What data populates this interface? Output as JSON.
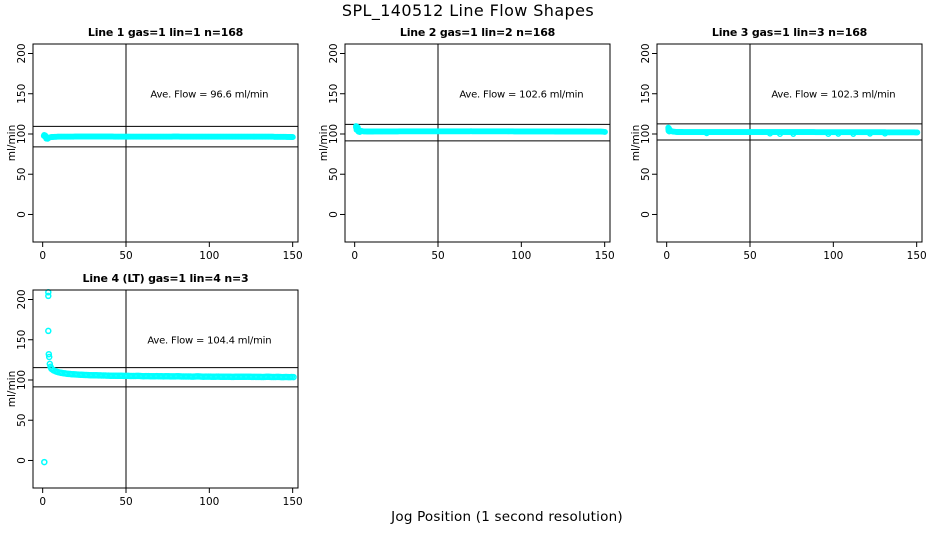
{
  "page": {
    "title": "SPL_140512  Line Flow Shapes",
    "xlabel": "Jog Position (1 second resolution)",
    "background": "#ffffff",
    "axis_color": "#000000"
  },
  "chart_data": [
    {
      "type": "scatter",
      "title": "Line 1 gas=1 lin=1 n=168",
      "ylabel": "ml/min",
      "ave_flow": 96.6,
      "ave_text": "Ave. Flow =  96.6  ml/min",
      "ave_xy": [
        100,
        150
      ],
      "xlim": [
        -5.8,
        153.2
      ],
      "ylim": [
        -34.2,
        211.8
      ],
      "xticks": [
        0,
        50,
        100,
        150
      ],
      "yticks": [
        0,
        50,
        100,
        150,
        200
      ],
      "vline_x": 50,
      "hlines": [
        109.5,
        84
      ],
      "marker_color": "#00FFFF",
      "marker": {
        "r": 2.2,
        "stroke_width": 1.5
      },
      "band": {
        "step": 0.45,
        "points": [
          [
            0.7,
            97.8
          ],
          [
            1.5,
            96.6
          ],
          [
            2.5,
            95.4
          ],
          [
            3.5,
            95.3
          ],
          [
            4.5,
            95.9
          ],
          [
            6,
            96.4
          ],
          [
            9,
            96.6
          ],
          [
            20,
            96.7
          ],
          [
            40,
            96.7
          ],
          [
            60,
            96.6
          ],
          [
            80,
            96.7
          ],
          [
            100,
            96.6
          ],
          [
            120,
            96.6
          ],
          [
            135,
            96.6
          ],
          [
            145,
            96.5
          ],
          [
            149,
            96.3
          ],
          [
            150.5,
            96.1
          ]
        ]
      },
      "outliers": [
        [
          0.9,
          98.9
        ],
        [
          1.6,
          98.3
        ],
        [
          2.2,
          94.2
        ],
        [
          3,
          94
        ]
      ]
    },
    {
      "type": "scatter",
      "title": "Line 2 gas=1 lin=2 n=168",
      "ylabel": "ml/min",
      "ave_flow": 102.6,
      "ave_text": "Ave. Flow =  102.6  ml/min",
      "ave_xy": [
        100,
        150
      ],
      "xlim": [
        -5.8,
        153.2
      ],
      "ylim": [
        -34.2,
        211.8
      ],
      "xticks": [
        0,
        50,
        100,
        150
      ],
      "yticks": [
        0,
        50,
        100,
        150,
        200
      ],
      "vline_x": 50,
      "hlines": [
        112,
        91.5
      ],
      "marker_color": "#00FFFF",
      "marker": {
        "r": 2.2,
        "stroke_width": 1.5
      },
      "band": {
        "step": 0.6,
        "points": [
          [
            0.8,
            108.2
          ],
          [
            1.6,
            106.3
          ],
          [
            2.5,
            104.8
          ],
          [
            3.5,
            103.9
          ],
          [
            5,
            103.3
          ],
          [
            8,
            103.1
          ],
          [
            15,
            103.2
          ],
          [
            30,
            103.3
          ],
          [
            50,
            103.3
          ],
          [
            70,
            103.4
          ],
          [
            90,
            103.3
          ],
          [
            110,
            103.2
          ],
          [
            130,
            103.1
          ],
          [
            142,
            103.0
          ],
          [
            148,
            102.9
          ],
          [
            150.5,
            102.6
          ]
        ]
      },
      "outliers": [
        [
          0.8,
          109.8
        ],
        [
          1.3,
          109.2
        ],
        [
          1.9,
          108.3
        ],
        [
          1.1,
          105.2
        ],
        [
          2.3,
          102.9
        ],
        [
          3.1,
          102.5
        ]
      ]
    },
    {
      "type": "scatter",
      "title": "Line 3 gas=1 lin=3 n=168",
      "ylabel": "ml/min",
      "ave_flow": 102.3,
      "ave_text": "Ave. Flow =  102.3  ml/min",
      "ave_xy": [
        100,
        150
      ],
      "xlim": [
        -5.8,
        153.2
      ],
      "ylim": [
        -34.2,
        211.8
      ],
      "xticks": [
        0,
        50,
        100,
        150
      ],
      "yticks": [
        0,
        50,
        100,
        150,
        200
      ],
      "vline_x": 50,
      "hlines": [
        112.5,
        92.5
      ],
      "marker_color": "#00FFFF",
      "marker": {
        "r": 2.2,
        "stroke_width": 1.5
      },
      "band": {
        "step": 0.6,
        "points": [
          [
            1,
            106.2
          ],
          [
            1.8,
            104.9
          ],
          [
            2.8,
            103.6
          ],
          [
            4,
            102.9
          ],
          [
            6,
            102.5
          ],
          [
            10,
            102.4
          ],
          [
            25,
            102.4
          ],
          [
            45,
            102.3
          ],
          [
            65,
            102.3
          ],
          [
            85,
            102.3
          ],
          [
            105,
            102.2
          ],
          [
            125,
            102.2
          ],
          [
            140,
            102.1
          ],
          [
            148,
            102.1
          ],
          [
            150.5,
            101.9
          ]
        ]
      },
      "outliers": [
        [
          1,
          107.9
        ],
        [
          1.4,
          107
        ],
        [
          1.1,
          104
        ],
        [
          1.6,
          103
        ],
        [
          24,
          100.9
        ],
        [
          62,
          100.3
        ],
        [
          68,
          99.9
        ],
        [
          76,
          100
        ],
        [
          97,
          99.8
        ],
        [
          103,
          100.1
        ],
        [
          112,
          100
        ],
        [
          122,
          100.2
        ],
        [
          131,
          100.4
        ]
      ]
    },
    {
      "type": "scatter",
      "title": "Line 4 (LT) gas=1 lin=4 n=3",
      "ylabel": "ml/min",
      "ave_flow": 104.4,
      "ave_text": "Ave. Flow =  104.4  ml/min",
      "ave_xy": [
        100,
        150
      ],
      "xlim": [
        -5.8,
        153.2
      ],
      "ylim": [
        -34.2,
        211.8
      ],
      "xticks": [
        0,
        50,
        100,
        150
      ],
      "yticks": [
        0,
        50,
        100,
        150,
        200
      ],
      "vline_x": 50,
      "hlines": [
        115.3,
        91.5
      ],
      "marker_color": "#00FFFF",
      "marker": {
        "r": 2.5,
        "stroke_width": 1.5
      },
      "band": {
        "step": 1.0,
        "points": [
          [
            5.5,
            113.5
          ],
          [
            6.5,
            112
          ],
          [
            8,
            110.6
          ],
          [
            10,
            109.4
          ],
          [
            12,
            108.6
          ],
          [
            15,
            107.7
          ],
          [
            18,
            107.1
          ],
          [
            21,
            106.7
          ],
          [
            24,
            106.4
          ],
          [
            27,
            106.1
          ],
          [
            30,
            105.9
          ],
          [
            34,
            105.7
          ],
          [
            38,
            105.5
          ],
          [
            42,
            105.3
          ],
          [
            46,
            105.2
          ],
          [
            50,
            105.1
          ],
          [
            54,
            104.9
          ],
          [
            57,
            105.1
          ],
          [
            60,
            104.7
          ],
          [
            63,
            104.9
          ],
          [
            66,
            104.6
          ],
          [
            69,
            104.8
          ],
          [
            72,
            104.5
          ],
          [
            75,
            104.6
          ],
          [
            78,
            104.4
          ],
          [
            81,
            104.6
          ],
          [
            84,
            104.3
          ],
          [
            87,
            104.4
          ],
          [
            90,
            104.2
          ],
          [
            93,
            104.5
          ],
          [
            96,
            104.1
          ],
          [
            99,
            104.3
          ],
          [
            102,
            104.0
          ],
          [
            105,
            104.2
          ],
          [
            108,
            103.9
          ],
          [
            111,
            104.1
          ],
          [
            114,
            103.8
          ],
          [
            117,
            104.0
          ],
          [
            120,
            103.9
          ],
          [
            123,
            104.1
          ],
          [
            126,
            103.8
          ],
          [
            129,
            103.9
          ],
          [
            132,
            103.7
          ],
          [
            135,
            104.0
          ],
          [
            138,
            103.6
          ],
          [
            141,
            103.9
          ],
          [
            144,
            103.5
          ],
          [
            146,
            103.8
          ],
          [
            148,
            103.5
          ],
          [
            150,
            103.7
          ],
          [
            151,
            103.4
          ]
        ]
      },
      "outliers": [
        [
          1,
          -2
        ],
        [
          3.4,
          209
        ],
        [
          3.4,
          204.5
        ],
        [
          3.4,
          161
        ],
        [
          3.7,
          132
        ],
        [
          3.9,
          128.5
        ],
        [
          4.3,
          120
        ],
        [
          4.7,
          116.5
        ],
        [
          5.1,
          114.5
        ]
      ]
    }
  ]
}
